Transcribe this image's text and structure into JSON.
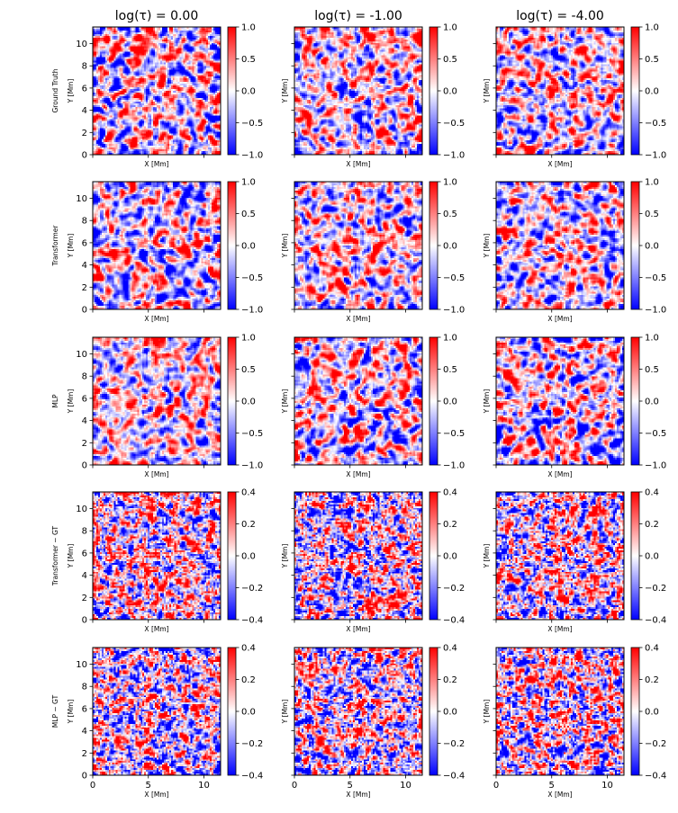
{
  "chart_data": {
    "type": "heatmap",
    "colormap": "bwr",
    "x_range": [
      0,
      11.5
    ],
    "y_range": [
      0,
      11.5
    ],
    "xlabel": "X [Mm]",
    "ylabel": "Y [Mm]",
    "column_titles": [
      "log(τ) = 0.00",
      "log(τ) = -1.00",
      "log(τ) = -4.00"
    ],
    "row_labels": [
      "Ground Truth",
      "Transformer",
      "MLP",
      "Transformer − GT",
      "MLP − GT"
    ],
    "x_ticks": [
      "0",
      "5",
      "10"
    ],
    "y_ticks": [
      "0",
      "2",
      "4",
      "6",
      "8",
      "10"
    ],
    "rows": [
      {
        "name": "Ground Truth",
        "vlim": [
          -1.0,
          1.0
        ],
        "colorbar_ticks": [
          "1.0",
          "0.5",
          "0.0",
          "−0.5",
          "−1.0"
        ]
      },
      {
        "name": "Transformer",
        "vlim": [
          -1.0,
          1.0
        ],
        "colorbar_ticks": [
          "1.0",
          "0.5",
          "0.0",
          "−0.5",
          "−1.0"
        ]
      },
      {
        "name": "MLP",
        "vlim": [
          -1.0,
          1.0
        ],
        "colorbar_ticks": [
          "1.0",
          "0.5",
          "0.0",
          "−0.5",
          "−1.0"
        ]
      },
      {
        "name": "Transformer − GT",
        "vlim": [
          -0.4,
          0.4
        ],
        "colorbar_ticks": [
          "0.4",
          "0.2",
          "0.0",
          "−0.2",
          "−0.4"
        ]
      },
      {
        "name": "MLP − GT",
        "vlim": [
          -0.4,
          0.4
        ],
        "colorbar_ticks": [
          "0.4",
          "0.2",
          "0.0",
          "−0.2",
          "−0.4"
        ]
      }
    ],
    "colors": {
      "low": "#0000ff",
      "mid": "#ffffff",
      "high": "#ff0000"
    }
  }
}
